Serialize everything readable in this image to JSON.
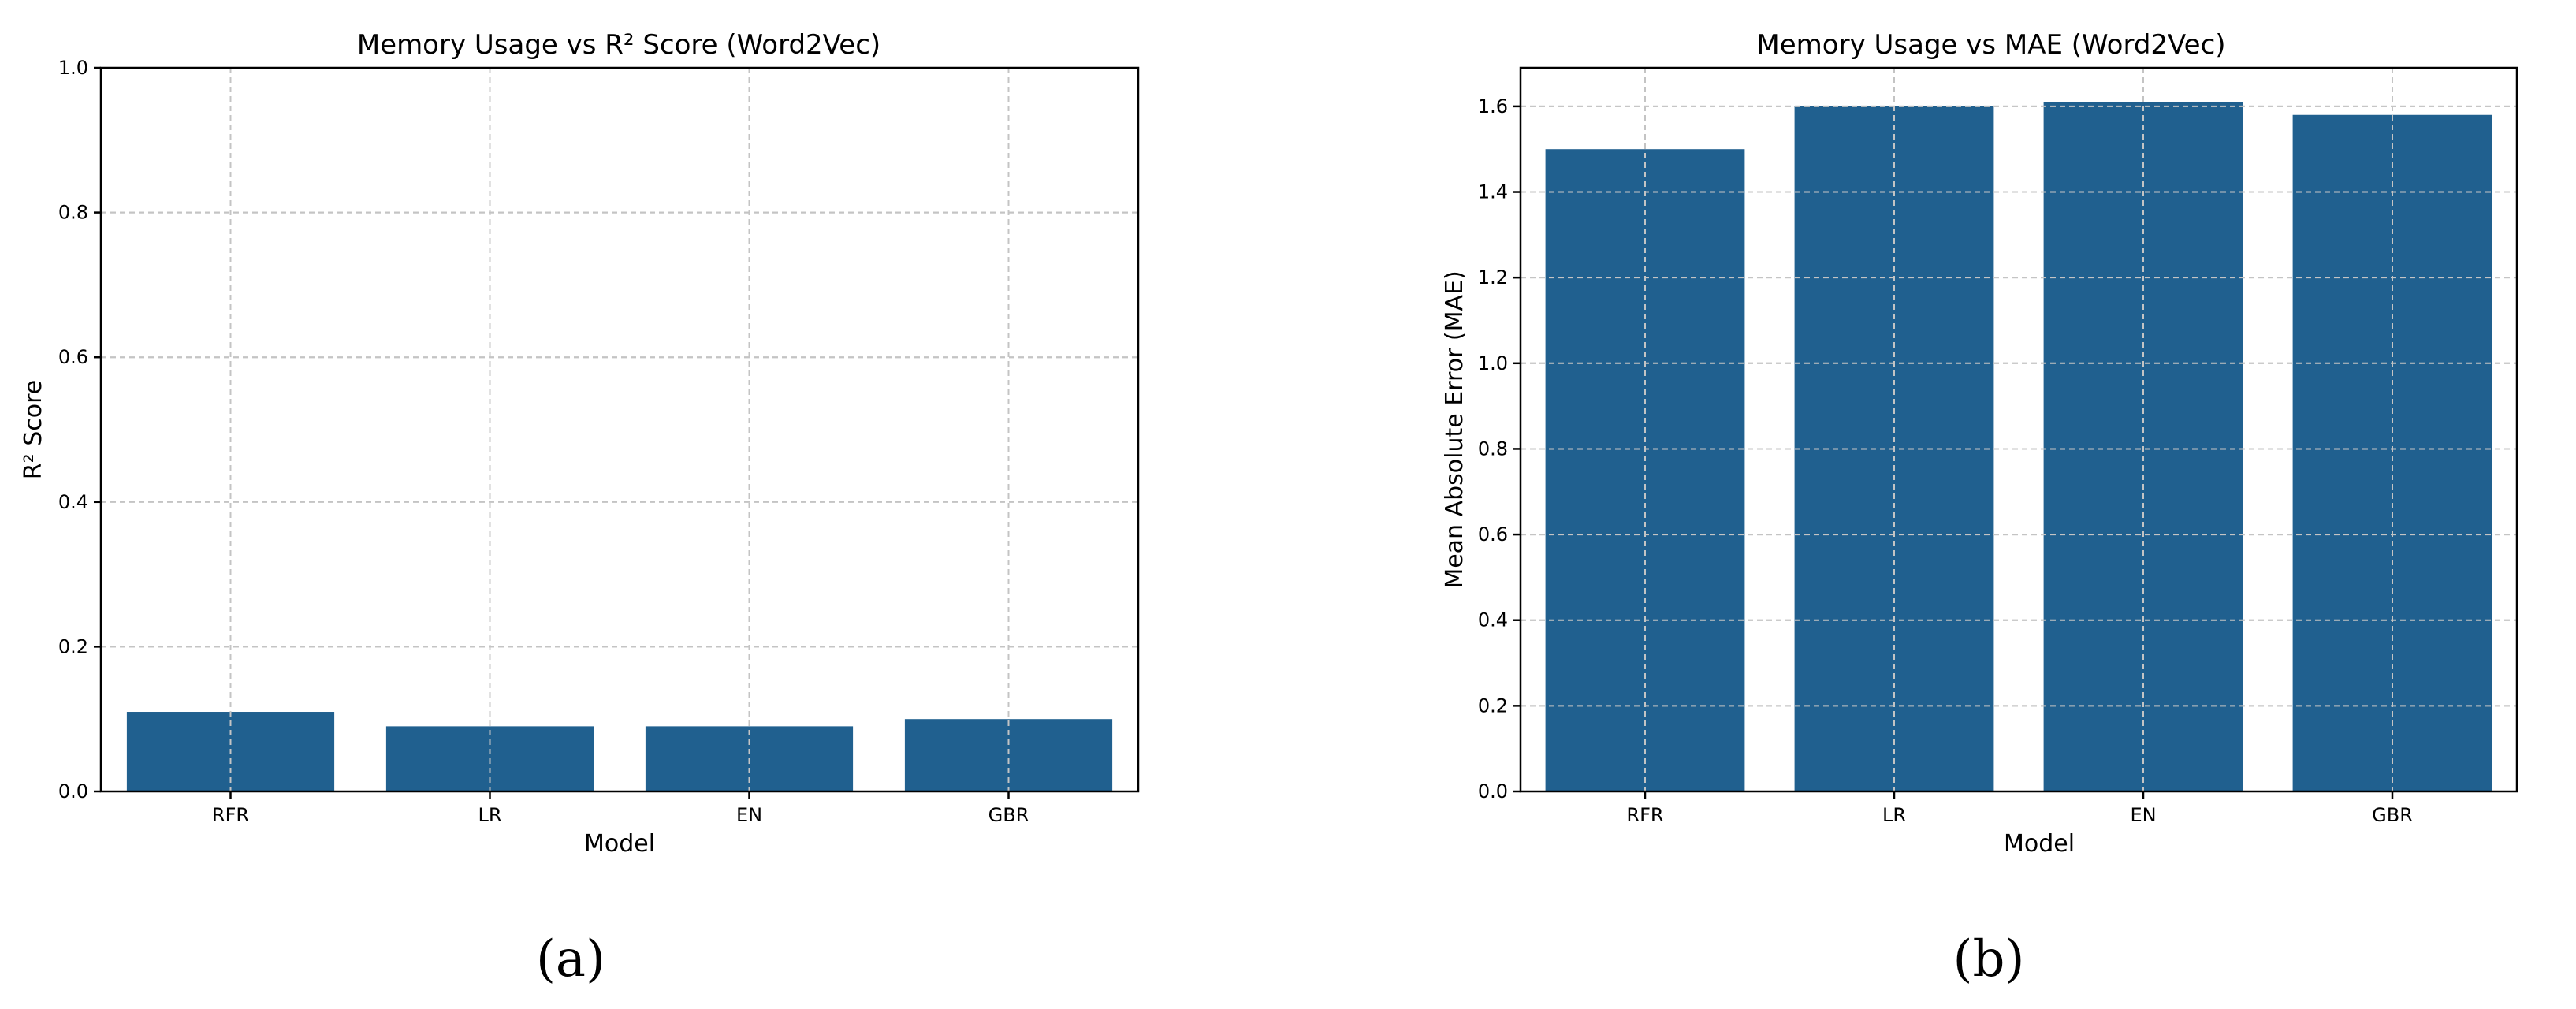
{
  "chart_data": [
    {
      "type": "bar",
      "title": "Memory Usage vs R² Score (Word2Vec)",
      "xlabel": "Model",
      "ylabel": "R² Score",
      "categories": [
        "RFR",
        "LR",
        "EN",
        "GBR"
      ],
      "values": [
        0.11,
        0.09,
        0.09,
        0.1
      ],
      "ylim": [
        0,
        1.0
      ],
      "yticks": [
        "0.0",
        "0.2",
        "0.4",
        "0.6",
        "0.8",
        "1.0"
      ],
      "grid": true,
      "bar_color": "#20608f",
      "caption": "(a)"
    },
    {
      "type": "bar",
      "title": "Memory Usage vs MAE (Word2Vec)",
      "xlabel": "Model",
      "ylabel": "Mean Absolute Error (MAE)",
      "categories": [
        "RFR",
        "LR",
        "EN",
        "GBR"
      ],
      "values": [
        1.5,
        1.6,
        1.61,
        1.58
      ],
      "ylim": [
        0,
        1.69
      ],
      "yticks": [
        "0.0",
        "0.2",
        "0.4",
        "0.6",
        "0.8",
        "1.0",
        "1.2",
        "1.4",
        "1.6"
      ],
      "grid": true,
      "bar_color": "#20608f",
      "caption": "(b)"
    }
  ]
}
